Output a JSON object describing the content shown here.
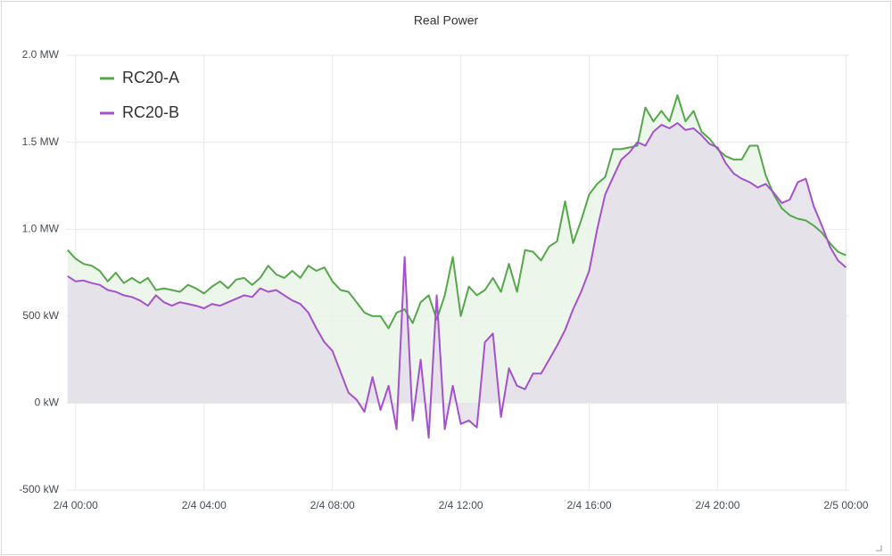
{
  "chart_data": {
    "type": "line",
    "title": "Real Power",
    "x": [
      -0.25,
      0,
      0.25,
      0.5,
      0.75,
      1,
      1.25,
      1.5,
      1.75,
      2,
      2.25,
      2.5,
      2.75,
      3,
      3.25,
      3.5,
      3.75,
      4,
      4.25,
      4.5,
      4.75,
      5,
      5.25,
      5.5,
      5.75,
      6,
      6.25,
      6.5,
      6.75,
      7,
      7.25,
      7.5,
      7.75,
      8,
      8.25,
      8.5,
      8.75,
      9,
      9.25,
      9.5,
      9.75,
      10,
      10.25,
      10.5,
      10.75,
      11,
      11.25,
      11.5,
      11.75,
      12,
      12.25,
      12.5,
      12.75,
      13,
      13.25,
      13.5,
      13.75,
      14,
      14.25,
      14.5,
      14.75,
      15,
      15.25,
      15.5,
      15.75,
      16,
      16.25,
      16.5,
      16.75,
      17,
      17.25,
      17.5,
      17.75,
      18,
      18.25,
      18.5,
      18.75,
      19,
      19.25,
      19.5,
      19.75,
      20,
      20.25,
      20.5,
      20.75,
      21,
      21.25,
      21.5,
      21.75,
      22,
      22.25,
      22.5,
      22.75,
      23,
      23.25,
      23.5,
      23.75,
      24
    ],
    "series": [
      {
        "name": "RC20-A",
        "color": "#56a64b",
        "fill": "#e9f4e6",
        "values": [
          880,
          830,
          800,
          790,
          760,
          700,
          750,
          690,
          720,
          690,
          720,
          650,
          660,
          650,
          640,
          680,
          660,
          630,
          670,
          700,
          660,
          710,
          720,
          680,
          720,
          790,
          740,
          720,
          760,
          720,
          790,
          760,
          780,
          700,
          650,
          640,
          580,
          520,
          500,
          500,
          430,
          520,
          540,
          460,
          580,
          620,
          480,
          620,
          840,
          500,
          670,
          620,
          650,
          720,
          640,
          800,
          640,
          880,
          870,
          820,
          900,
          930,
          1160,
          920,
          1050,
          1200,
          1260,
          1300,
          1460,
          1460,
          1470,
          1480,
          1700,
          1620,
          1680,
          1620,
          1770,
          1620,
          1680,
          1560,
          1520,
          1460,
          1420,
          1400,
          1400,
          1480,
          1480,
          1310,
          1200,
          1120,
          1080,
          1060,
          1050,
          1020,
          980,
          920,
          870,
          850
        ]
      },
      {
        "name": "RC20-B",
        "color": "#a352cc",
        "fill": "#e2dfe9",
        "values": [
          730,
          700,
          705,
          690,
          680,
          650,
          640,
          620,
          610,
          590,
          560,
          620,
          580,
          560,
          580,
          570,
          560,
          545,
          570,
          560,
          580,
          600,
          620,
          610,
          660,
          640,
          650,
          620,
          590,
          570,
          520,
          430,
          350,
          300,
          180,
          60,
          20,
          -50,
          150,
          -40,
          100,
          -150,
          840,
          -100,
          250,
          -200,
          620,
          -150,
          100,
          -120,
          -100,
          -140,
          350,
          400,
          -80,
          200,
          100,
          80,
          170,
          170,
          250,
          330,
          420,
          540,
          640,
          760,
          1000,
          1200,
          1300,
          1400,
          1440,
          1500,
          1480,
          1560,
          1600,
          1580,
          1610,
          1570,
          1580,
          1540,
          1490,
          1470,
          1380,
          1320,
          1290,
          1270,
          1240,
          1260,
          1210,
          1150,
          1170,
          1270,
          1290,
          1130,
          1020,
          900,
          820,
          780
        ]
      }
    ],
    "xlim": [
      -0.3,
      24.1
    ],
    "xticks": [
      {
        "value": 0,
        "label": "2/4 00:00"
      },
      {
        "value": 4,
        "label": "2/4 04:00"
      },
      {
        "value": 8,
        "label": "2/4 08:00"
      },
      {
        "value": 12,
        "label": "2/4 12:00"
      },
      {
        "value": 16,
        "label": "2/4 16:00"
      },
      {
        "value": 20,
        "label": "2/4 20:00"
      },
      {
        "value": 24,
        "label": "2/5 00:00"
      }
    ],
    "ylim": [
      -500,
      2000
    ],
    "yticks": [
      {
        "value": -500,
        "label": "-500 kW"
      },
      {
        "value": 0,
        "label": "0 kW"
      },
      {
        "value": 500,
        "label": "500 kW"
      },
      {
        "value": 1000,
        "label": "1.0 MW"
      },
      {
        "value": 1500,
        "label": "1.5 MW"
      },
      {
        "value": 2000,
        "label": "2.0 MW"
      }
    ],
    "grid": true,
    "legend": "upper left"
  }
}
